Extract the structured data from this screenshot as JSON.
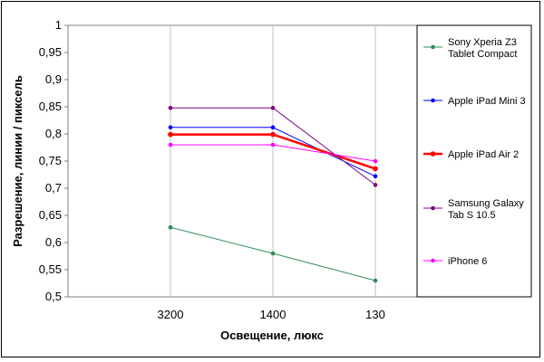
{
  "chart_data": {
    "type": "line",
    "xlabel": "Освещение, люкс",
    "ylabel": "Разрешение, линии / пиксель",
    "categories": [
      "3200",
      "1400",
      "130"
    ],
    "ylim": [
      0.5,
      1
    ],
    "yticks": [
      "0,5",
      "0,55",
      "0,6",
      "0,65",
      "0,7",
      "0,75",
      "0,8",
      "0,85",
      "0,9",
      "0,95",
      "1"
    ],
    "grid": "vertical",
    "legend_position": "right",
    "series": [
      {
        "name": "Sony Xperia Z3 Tablet Compact",
        "legend_lines": [
          "Sony Xperia Z3",
          "Tablet Compact"
        ],
        "color": "#2e8b57",
        "values": [
          0.628,
          0.58,
          0.53
        ]
      },
      {
        "name": "Apple iPad Mini 3",
        "legend_lines": [
          "Apple iPad Mini 3"
        ],
        "color": "#0000ff",
        "values": [
          0.812,
          0.812,
          0.722
        ]
      },
      {
        "name": "Apple iPad Air 2",
        "legend_lines": [
          "Apple iPad Air 2"
        ],
        "color": "#ff0000",
        "values": [
          0.799,
          0.799,
          0.736
        ]
      },
      {
        "name": "Samsung Galaxy Tab S 10.5",
        "legend_lines": [
          "Samsung Galaxy",
          "Tab S 10.5"
        ],
        "color": "#800080",
        "values": [
          0.848,
          0.848,
          0.706
        ]
      },
      {
        "name": "iPhone 6",
        "legend_lines": [
          "iPhone 6"
        ],
        "color": "#ff00ff",
        "values": [
          0.78,
          0.78,
          0.75
        ]
      }
    ]
  }
}
